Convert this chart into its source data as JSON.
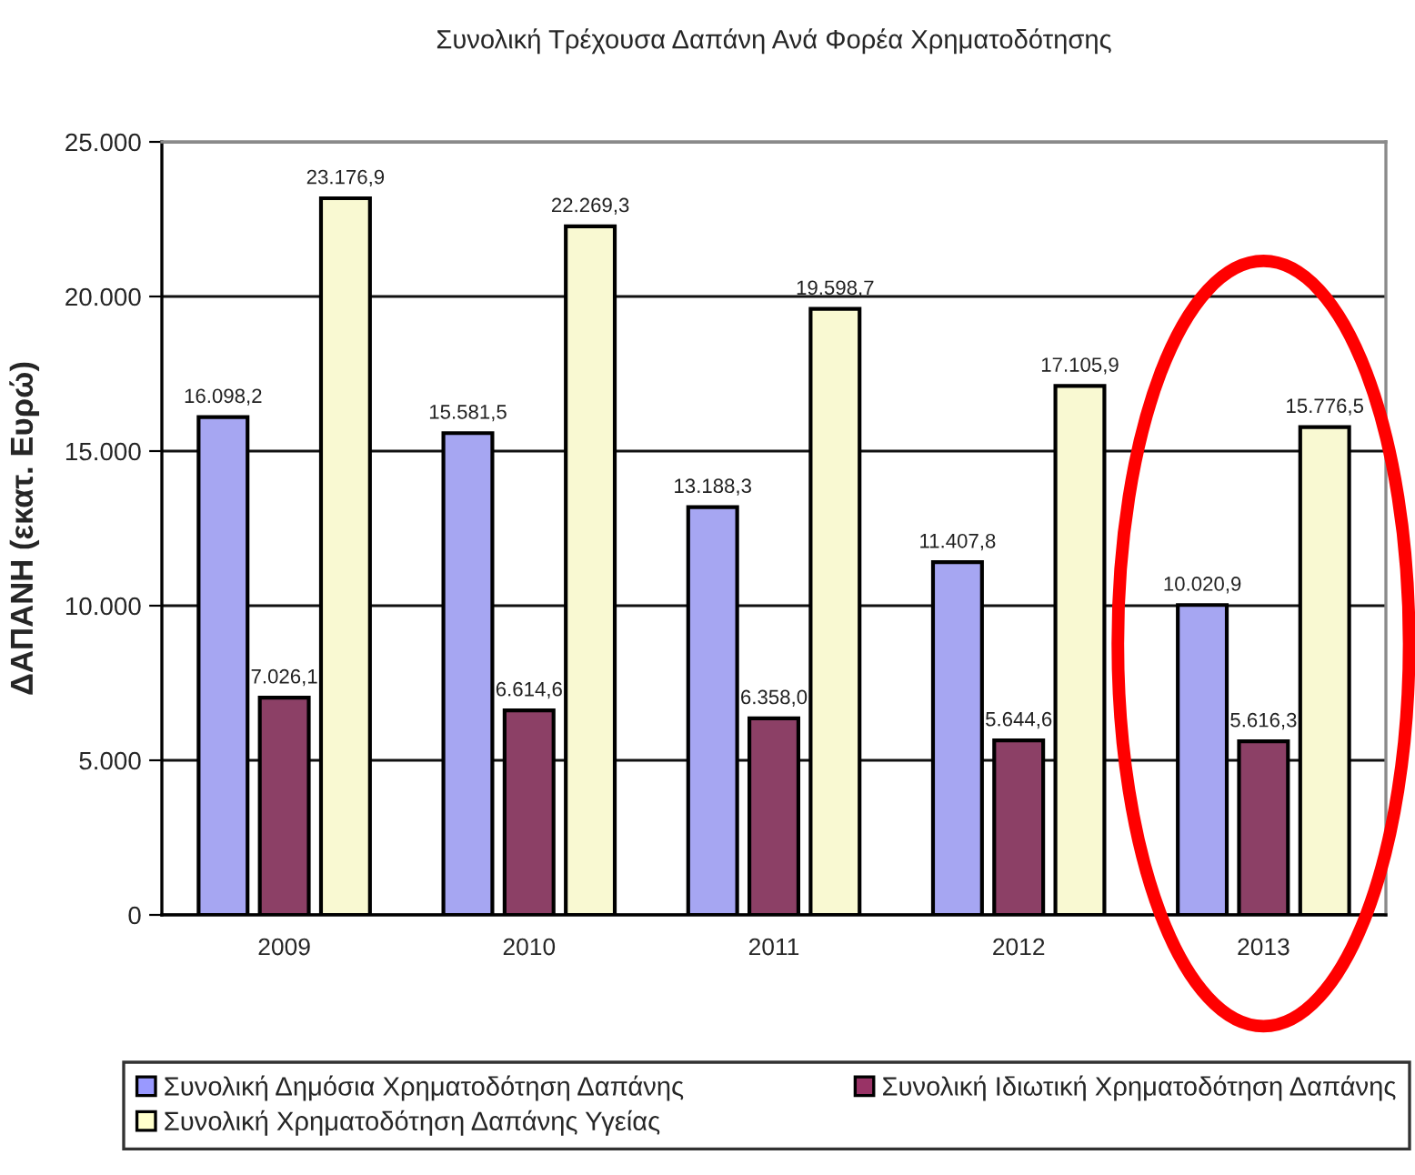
{
  "chart_data": {
    "type": "bar",
    "title": "Συνολική Τρέχουσα Δαπάνη Ανά Φορέα Χρηματοδότησης",
    "ylabel": "ΔΑΠΑΝΗ (εκατ. Ευρώ)",
    "categories": [
      "2009",
      "2010",
      "2011",
      "2012",
      "2013"
    ],
    "series": [
      {
        "name": "Συνολική Δημόσια Χρηματοδότηση Δαπάνης",
        "color": "#9999ff",
        "values": [
          16098.2,
          15581.5,
          13188.3,
          11407.8,
          10020.9
        ],
        "value_labels": [
          "16.098,2",
          "15.581,5",
          "13.188,3",
          "11.407,8",
          "10.020,9"
        ]
      },
      {
        "name": "Συνολική Ιδιωτική Χρηματοδότηση Δαπάνης",
        "color": "#993366",
        "values": [
          7026.1,
          6614.6,
          6358.0,
          5644.6,
          5616.3
        ],
        "value_labels": [
          "7.026,1",
          "6.614,6",
          "6.358,0",
          "5.644,6",
          "5.616,3"
        ]
      },
      {
        "name": "Συνολική Χρηματοδότηση Δαπάνης Υγείας",
        "color": "#ffffcc",
        "values": [
          23176.9,
          22269.3,
          19598.7,
          17105.9,
          15776.5
        ],
        "value_labels": [
          "23.176,9",
          "22.269,3",
          "19.598,7",
          "17.105,9",
          "15.776,5"
        ]
      }
    ],
    "ylim": [
      0,
      25000
    ],
    "yticks": [
      0,
      {
        "value": 5000,
        "label": "5.000"
      },
      {
        "value": 10000,
        "label": "10.000"
      },
      {
        "value": 15000,
        "label": "15.000"
      },
      {
        "value": 20000,
        "label": "20.000"
      },
      {
        "value": 25000,
        "label": "25.000"
      }
    ],
    "grid": "y",
    "legend": "bottom"
  }
}
